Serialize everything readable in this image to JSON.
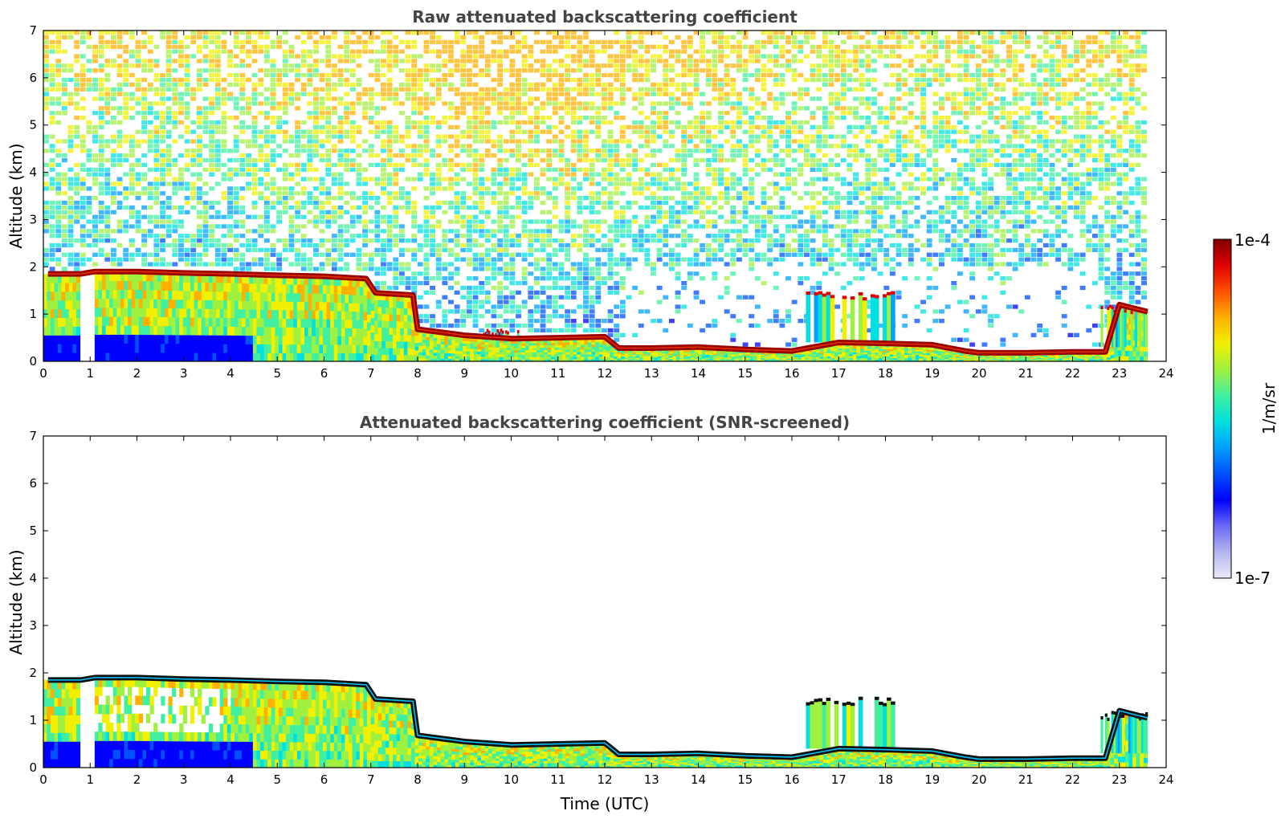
{
  "chart_data": [
    {
      "type": "heatmap",
      "title": "Raw attenuated backscattering coefficient",
      "xlabel": "",
      "ylabel": "Altitude (km)",
      "xlim": [
        0,
        24
      ],
      "ylim": [
        0,
        7
      ],
      "xticks": [
        "0",
        "1",
        "2",
        "3",
        "4",
        "5",
        "6",
        "7",
        "8",
        "9",
        "10",
        "11",
        "12",
        "13",
        "14",
        "15",
        "16",
        "17",
        "18",
        "19",
        "20",
        "21",
        "22",
        "23",
        "24"
      ],
      "yticks": [
        "0",
        "1",
        "2",
        "3",
        "4",
        "5",
        "6",
        "7"
      ],
      "data_end_time": 23.6,
      "cloud_base_series": {
        "name": "cloud/aerosol layer top (km)",
        "x": [
          0.1,
          0.8,
          1.1,
          2,
          3,
          4,
          5,
          6,
          6.9,
          7.1,
          7.9,
          8,
          9,
          10,
          11,
          12,
          12.3,
          13,
          14,
          15,
          16,
          17,
          18,
          19,
          19.7,
          20,
          21,
          22,
          22.7,
          23,
          23.6
        ],
        "y": [
          1.85,
          1.85,
          1.9,
          1.9,
          1.87,
          1.85,
          1.82,
          1.8,
          1.75,
          1.45,
          1.4,
          0.68,
          0.55,
          0.48,
          0.5,
          0.52,
          0.28,
          0.28,
          0.3,
          0.25,
          0.22,
          0.4,
          0.38,
          0.35,
          0.22,
          0.18,
          0.18,
          0.2,
          0.2,
          1.2,
          1.05
        ]
      },
      "features": [
        {
          "name": "elevated clouds",
          "x": [
            16.3,
            18.2
          ],
          "y": [
            0.4,
            1.5
          ]
        },
        {
          "name": "late elevated cloud",
          "x": [
            22.6,
            23.6
          ],
          "y": [
            0.3,
            1.2
          ]
        },
        {
          "name": "small cloud patch",
          "x": [
            9.4,
            10.2
          ],
          "y": [
            0.5,
            0.75
          ]
        }
      ]
    },
    {
      "type": "heatmap",
      "title": "Attenuated backscattering coefficient (SNR-screened)",
      "xlabel": "Time (UTC)",
      "ylabel": "Altitude (km)",
      "xlim": [
        0,
        24
      ],
      "ylim": [
        0,
        7
      ],
      "xticks": [
        "0",
        "1",
        "2",
        "3",
        "4",
        "5",
        "6",
        "7",
        "8",
        "9",
        "10",
        "11",
        "12",
        "13",
        "14",
        "15",
        "16",
        "17",
        "18",
        "19",
        "20",
        "21",
        "22",
        "23",
        "24"
      ],
      "yticks": [
        "0",
        "1",
        "2",
        "3",
        "4",
        "5",
        "6",
        "7"
      ],
      "data_end_time": 23.6,
      "cloud_base_series": {
        "name": "cloud/aerosol layer top (km)",
        "x": [
          0.1,
          0.8,
          1.1,
          2,
          3,
          4,
          5,
          6,
          6.9,
          7.1,
          7.9,
          8,
          9,
          10,
          11,
          12,
          12.3,
          13,
          14,
          15,
          16,
          17,
          18,
          19,
          19.7,
          20,
          21,
          22,
          22.7,
          23,
          23.6
        ],
        "y": [
          1.85,
          1.85,
          1.9,
          1.9,
          1.87,
          1.85,
          1.82,
          1.8,
          1.75,
          1.45,
          1.4,
          0.68,
          0.55,
          0.48,
          0.5,
          0.52,
          0.28,
          0.28,
          0.3,
          0.25,
          0.22,
          0.4,
          0.38,
          0.35,
          0.22,
          0.18,
          0.18,
          0.2,
          0.2,
          1.2,
          1.05
        ]
      },
      "features": [
        {
          "name": "elevated clouds",
          "x": [
            16.3,
            18.2
          ],
          "y": [
            0.4,
            1.5
          ]
        },
        {
          "name": "late elevated cloud",
          "x": [
            22.6,
            23.6
          ],
          "y": [
            0.3,
            1.2
          ]
        }
      ]
    }
  ],
  "colorbar": {
    "label": "1/m/sr",
    "max_label": "1e-4",
    "min_label": "1e-7",
    "colors": [
      "#eaeaf8",
      "#b4b4f0",
      "#6a6af5",
      "#0000ff",
      "#0050ff",
      "#00a0ff",
      "#00e0e0",
      "#40f0a0",
      "#a0f040",
      "#f0f000",
      "#ffb000",
      "#ff5000",
      "#e00000",
      "#800000"
    ]
  }
}
